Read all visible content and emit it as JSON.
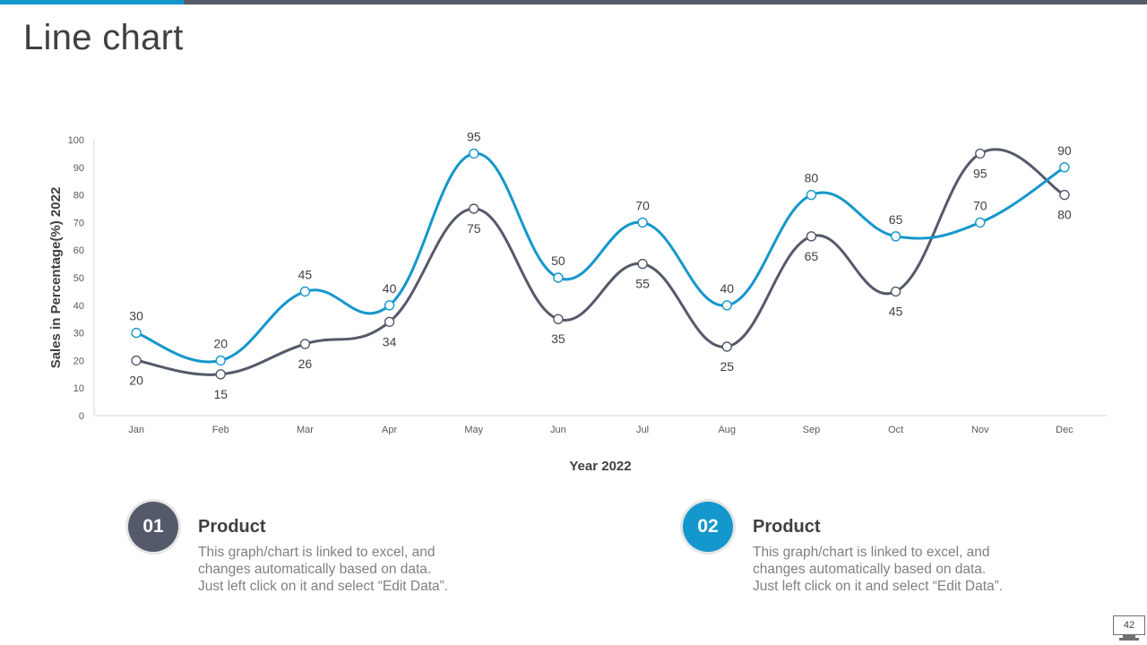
{
  "slide": {
    "title": "Line chart",
    "page_number": "42",
    "colors": {
      "accent": "#1497cc",
      "dark": "#555a6a",
      "bar": "#555a66"
    }
  },
  "legend_cards": [
    {
      "number": "01",
      "title": "Product",
      "lines": [
        "This graph/chart is linked to excel, and",
        "changes automatically based on data.",
        "Just left click on it and select “Edit Data”."
      ]
    },
    {
      "number": "02",
      "title": "Product",
      "lines": [
        "This graph/chart is linked to excel, and",
        "changes automatically based on data.",
        "Just left click on it and select “Edit Data”."
      ]
    }
  ],
  "chart_data": {
    "type": "line",
    "title": "",
    "xlabel": "Year 2022",
    "ylabel": "Sales in Percentage(%) 2022",
    "categories": [
      "Jan",
      "Feb",
      "Mar",
      "Apr",
      "May",
      "Jun",
      "Jul",
      "Aug",
      "Sep",
      "Oct",
      "Nov",
      "Dec"
    ],
    "ylim": [
      0,
      100
    ],
    "yticks": [
      0,
      10,
      20,
      30,
      40,
      50,
      60,
      70,
      80,
      90,
      100
    ],
    "grid": false,
    "smooth": true,
    "series": [
      {
        "name": "Product 01",
        "color": "#555a6a",
        "values": [
          20,
          15,
          26,
          34,
          75,
          35,
          55,
          25,
          65,
          45,
          95,
          80
        ],
        "label_positions": [
          "below",
          "below",
          "below",
          "below",
          "below",
          "below",
          "below",
          "below",
          "below",
          "below",
          "below",
          "below"
        ]
      },
      {
        "name": "Product 02",
        "color": "#1497cc",
        "values": [
          30,
          20,
          45,
          40,
          95,
          50,
          70,
          40,
          80,
          65,
          70,
          90
        ],
        "label_positions": [
          "above",
          "above",
          "above",
          "above",
          "above",
          "above",
          "above",
          "above",
          "above",
          "above",
          "above",
          "above"
        ]
      }
    ]
  }
}
